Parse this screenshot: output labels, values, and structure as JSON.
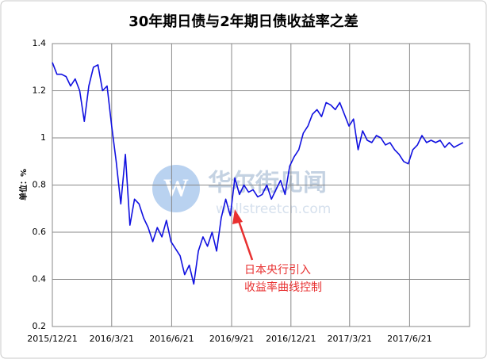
{
  "chart_data": {
    "type": "line",
    "title": "30年期日债与2年期日债收益率之差",
    "y_label": "单位：%",
    "x": [
      "2015-12-21",
      "2015-12-28",
      "2016-01-04",
      "2016-01-11",
      "2016-01-18",
      "2016-01-25",
      "2016-02-01",
      "2016-02-08",
      "2016-02-15",
      "2016-02-22",
      "2016-02-29",
      "2016-03-07",
      "2016-03-14",
      "2016-03-21",
      "2016-03-28",
      "2016-04-04",
      "2016-04-11",
      "2016-04-18",
      "2016-04-25",
      "2016-05-02",
      "2016-05-09",
      "2016-05-16",
      "2016-05-23",
      "2016-05-30",
      "2016-06-06",
      "2016-06-13",
      "2016-06-20",
      "2016-06-27",
      "2016-07-04",
      "2016-07-11",
      "2016-07-18",
      "2016-07-25",
      "2016-08-01",
      "2016-08-08",
      "2016-08-15",
      "2016-08-22",
      "2016-08-29",
      "2016-09-05",
      "2016-09-12",
      "2016-09-19",
      "2016-09-26",
      "2016-10-03",
      "2016-10-10",
      "2016-10-17",
      "2016-10-24",
      "2016-10-31",
      "2016-11-07",
      "2016-11-14",
      "2016-11-21",
      "2016-11-28",
      "2016-12-05",
      "2016-12-12",
      "2016-12-19",
      "2016-12-26",
      "2017-01-02",
      "2017-01-09",
      "2017-01-16",
      "2017-01-23",
      "2017-01-30",
      "2017-02-06",
      "2017-02-13",
      "2017-02-20",
      "2017-02-27",
      "2017-03-06",
      "2017-03-13",
      "2017-03-20",
      "2017-03-27",
      "2017-04-03",
      "2017-04-10",
      "2017-04-17",
      "2017-04-24",
      "2017-05-01",
      "2017-05-08",
      "2017-05-15",
      "2017-05-22",
      "2017-05-29",
      "2017-06-05",
      "2017-06-12",
      "2017-06-19",
      "2017-06-26",
      "2017-07-03",
      "2017-07-10",
      "2017-07-17",
      "2017-07-24",
      "2017-07-31",
      "2017-08-07",
      "2017-08-14",
      "2017-08-21",
      "2017-08-28",
      "2017-09-04",
      "2017-09-11"
    ],
    "series": [
      {
        "color": "#1010e0",
        "values": [
          1.32,
          1.27,
          1.27,
          1.26,
          1.22,
          1.25,
          1.2,
          1.07,
          1.22,
          1.3,
          1.31,
          1.2,
          1.22,
          1.05,
          0.9,
          0.72,
          0.93,
          0.63,
          0.74,
          0.72,
          0.66,
          0.62,
          0.56,
          0.62,
          0.58,
          0.65,
          0.56,
          0.53,
          0.5,
          0.42,
          0.46,
          0.38,
          0.52,
          0.58,
          0.54,
          0.6,
          0.52,
          0.66,
          0.74,
          0.67,
          0.83,
          0.76,
          0.8,
          0.77,
          0.78,
          0.75,
          0.76,
          0.8,
          0.74,
          0.78,
          0.82,
          0.76,
          0.88,
          0.92,
          0.95,
          1.02,
          1.05,
          1.1,
          1.12,
          1.09,
          1.15,
          1.14,
          1.12,
          1.15,
          1.1,
          1.05,
          1.08,
          0.95,
          1.03,
          0.99,
          0.98,
          1.01,
          1.0,
          0.97,
          0.98,
          0.95,
          0.93,
          0.9,
          0.89,
          0.95,
          0.97,
          1.01,
          0.98,
          0.99,
          0.98,
          0.99,
          0.96,
          0.98,
          0.96,
          0.97,
          0.98
        ]
      }
    ],
    "xlim": [
      "2015-12-21",
      "2017-09-21"
    ],
    "xticks": [
      {
        "value": "2015-12-21",
        "label": "2015/12/21"
      },
      {
        "value": "2016-03-21",
        "label": "2016/3/21"
      },
      {
        "value": "2016-06-21",
        "label": "2016/6/21"
      },
      {
        "value": "2016-09-21",
        "label": "2016/9/21"
      },
      {
        "value": "2016-12-21",
        "label": "2016/12/21"
      },
      {
        "value": "2017-03-21",
        "label": "2017/3/21"
      },
      {
        "value": "2017-06-21",
        "label": "2017/6/21"
      }
    ],
    "ylim": [
      0.2,
      1.4
    ],
    "yticks": [
      0.2,
      0.4,
      0.6,
      0.8,
      1,
      1.2,
      1.4
    ],
    "grid": true,
    "annotation": [
      "日本央行引入",
      "收益率曲线控制"
    ],
    "annotation_color": "#e83030"
  },
  "watermark": {
    "name": "华尔街见闻",
    "url": "wallstreetcn.com"
  }
}
